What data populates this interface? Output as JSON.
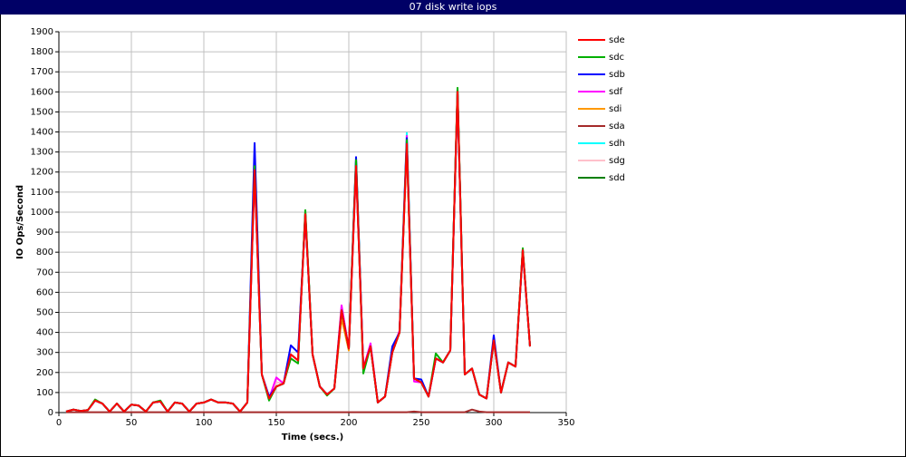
{
  "chart_data": {
    "type": "line",
    "title": "07 disk write iops",
    "xlabel": "Time (secs.)",
    "ylabel": "IO Ops/Second",
    "xlim": [
      0,
      350
    ],
    "xticks": [
      0,
      50,
      100,
      150,
      200,
      250,
      300,
      350
    ],
    "ylim": [
      0,
      1900
    ],
    "yticks": [
      0,
      100,
      200,
      300,
      400,
      500,
      600,
      700,
      800,
      900,
      1000,
      1100,
      1200,
      1300,
      1400,
      1500,
      1600,
      1700,
      1800,
      1900
    ],
    "grid": true,
    "legend": "right",
    "x": [
      5,
      10,
      15,
      20,
      25,
      30,
      35,
      40,
      45,
      50,
      55,
      60,
      65,
      70,
      75,
      80,
      85,
      90,
      95,
      100,
      105,
      110,
      115,
      120,
      125,
      130,
      135,
      140,
      145,
      150,
      155,
      160,
      165,
      170,
      175,
      180,
      185,
      190,
      195,
      200,
      205,
      210,
      215,
      220,
      225,
      230,
      235,
      240,
      245,
      250,
      255,
      260,
      265,
      270,
      275,
      280,
      285,
      290,
      295,
      300,
      305,
      310,
      315,
      320,
      325
    ],
    "series": [
      {
        "name": "sde",
        "color": "#ff0000",
        "values": [
          5,
          15,
          8,
          12,
          60,
          45,
          5,
          45,
          5,
          40,
          35,
          5,
          50,
          55,
          5,
          50,
          45,
          5,
          45,
          50,
          65,
          50,
          50,
          45,
          5,
          50,
          1210,
          190,
          70,
          130,
          145,
          290,
          260,
          990,
          290,
          130,
          90,
          120,
          510,
          320,
          1230,
          220,
          330,
          50,
          80,
          300,
          400,
          1340,
          170,
          150,
          80,
          270,
          250,
          310,
          1600,
          190,
          220,
          90,
          70,
          360,
          100,
          250,
          230,
          810,
          330
        ]
      },
      {
        "name": "sdc",
        "color": "#00b000",
        "values": [
          5,
          15,
          8,
          12,
          65,
          45,
          5,
          45,
          5,
          40,
          35,
          5,
          50,
          60,
          5,
          50,
          45,
          5,
          45,
          50,
          65,
          50,
          50,
          45,
          5,
          50,
          1230,
          190,
          60,
          130,
          145,
          270,
          245,
          1010,
          290,
          130,
          85,
          120,
          510,
          320,
          1260,
          195,
          330,
          50,
          80,
          300,
          400,
          1360,
          170,
          150,
          80,
          295,
          250,
          310,
          1620,
          190,
          220,
          90,
          70,
          360,
          100,
          250,
          230,
          820,
          330
        ]
      },
      {
        "name": "sdb",
        "color": "#0000ff",
        "values": [
          5,
          15,
          8,
          12,
          60,
          45,
          5,
          45,
          5,
          40,
          35,
          5,
          50,
          55,
          5,
          50,
          45,
          5,
          45,
          50,
          65,
          50,
          50,
          45,
          5,
          50,
          1345,
          190,
          80,
          130,
          145,
          335,
          300,
          990,
          290,
          130,
          90,
          120,
          510,
          320,
          1275,
          220,
          330,
          50,
          80,
          330,
          400,
          1370,
          170,
          165,
          80,
          270,
          250,
          310,
          1600,
          190,
          220,
          90,
          70,
          385,
          100,
          250,
          230,
          810,
          330
        ]
      },
      {
        "name": "sdf",
        "color": "#ff00ff",
        "values": [
          5,
          15,
          8,
          12,
          60,
          45,
          5,
          45,
          5,
          40,
          35,
          5,
          50,
          55,
          5,
          50,
          45,
          5,
          45,
          50,
          65,
          50,
          50,
          45,
          5,
          50,
          1210,
          190,
          70,
          175,
          145,
          290,
          260,
          990,
          290,
          130,
          90,
          120,
          535,
          320,
          1230,
          220,
          345,
          50,
          80,
          300,
          410,
          1380,
          155,
          150,
          80,
          270,
          250,
          310,
          1600,
          190,
          220,
          90,
          70,
          360,
          100,
          250,
          230,
          810,
          330
        ]
      },
      {
        "name": "sdi",
        "color": "#ff9900",
        "values": [
          5,
          15,
          8,
          12,
          60,
          45,
          5,
          45,
          5,
          40,
          35,
          5,
          50,
          55,
          5,
          50,
          45,
          5,
          45,
          50,
          65,
          50,
          50,
          45,
          5,
          50,
          1210,
          190,
          70,
          130,
          145,
          290,
          260,
          990,
          290,
          130,
          90,
          120,
          470,
          310,
          1230,
          220,
          330,
          50,
          80,
          300,
          400,
          1340,
          170,
          150,
          80,
          270,
          250,
          310,
          1610,
          190,
          220,
          90,
          70,
          360,
          100,
          250,
          230,
          810,
          330
        ]
      },
      {
        "name": "sda",
        "color": "#a52a2a",
        "values": [
          2,
          2,
          2,
          2,
          2,
          2,
          2,
          2,
          2,
          2,
          2,
          2,
          2,
          2,
          2,
          2,
          2,
          2,
          2,
          2,
          2,
          2,
          2,
          2,
          2,
          2,
          2,
          2,
          2,
          2,
          2,
          2,
          2,
          2,
          2,
          2,
          2,
          2,
          2,
          2,
          2,
          2,
          2,
          2,
          2,
          2,
          2,
          2,
          5,
          2,
          2,
          2,
          2,
          2,
          2,
          2,
          15,
          5,
          2,
          2,
          2,
          2,
          2,
          2,
          2
        ]
      },
      {
        "name": "sdh",
        "color": "#00ffff",
        "values": [
          5,
          15,
          8,
          12,
          60,
          45,
          5,
          45,
          5,
          40,
          35,
          5,
          50,
          55,
          5,
          50,
          45,
          5,
          45,
          50,
          65,
          50,
          50,
          45,
          5,
          50,
          1210,
          190,
          70,
          130,
          145,
          290,
          260,
          990,
          290,
          130,
          90,
          120,
          510,
          320,
          1230,
          220,
          330,
          50,
          80,
          300,
          400,
          1395,
          170,
          150,
          80,
          270,
          250,
          310,
          1600,
          190,
          220,
          90,
          70,
          360,
          100,
          250,
          230,
          810,
          330
        ]
      },
      {
        "name": "sdg",
        "color": "#ffc0cb",
        "values": [
          5,
          15,
          8,
          12,
          60,
          45,
          5,
          45,
          5,
          40,
          35,
          5,
          50,
          55,
          5,
          50,
          45,
          5,
          45,
          50,
          65,
          50,
          50,
          45,
          5,
          50,
          1210,
          190,
          70,
          150,
          145,
          290,
          260,
          990,
          290,
          130,
          90,
          120,
          500,
          320,
          1230,
          220,
          330,
          50,
          80,
          300,
          400,
          1340,
          170,
          150,
          80,
          270,
          250,
          310,
          1600,
          190,
          220,
          90,
          70,
          360,
          100,
          250,
          230,
          810,
          330
        ]
      },
      {
        "name": "sdd",
        "color": "#008000",
        "values": [
          5,
          15,
          8,
          12,
          60,
          45,
          5,
          45,
          5,
          40,
          35,
          5,
          50,
          55,
          5,
          50,
          45,
          5,
          45,
          50,
          65,
          50,
          50,
          45,
          5,
          50,
          1220,
          190,
          70,
          130,
          145,
          290,
          260,
          1000,
          290,
          130,
          90,
          120,
          510,
          320,
          1265,
          220,
          330,
          50,
          80,
          300,
          400,
          1340,
          170,
          150,
          80,
          270,
          250,
          310,
          1615,
          190,
          220,
          90,
          70,
          360,
          100,
          250,
          230,
          810,
          330
        ]
      }
    ]
  }
}
